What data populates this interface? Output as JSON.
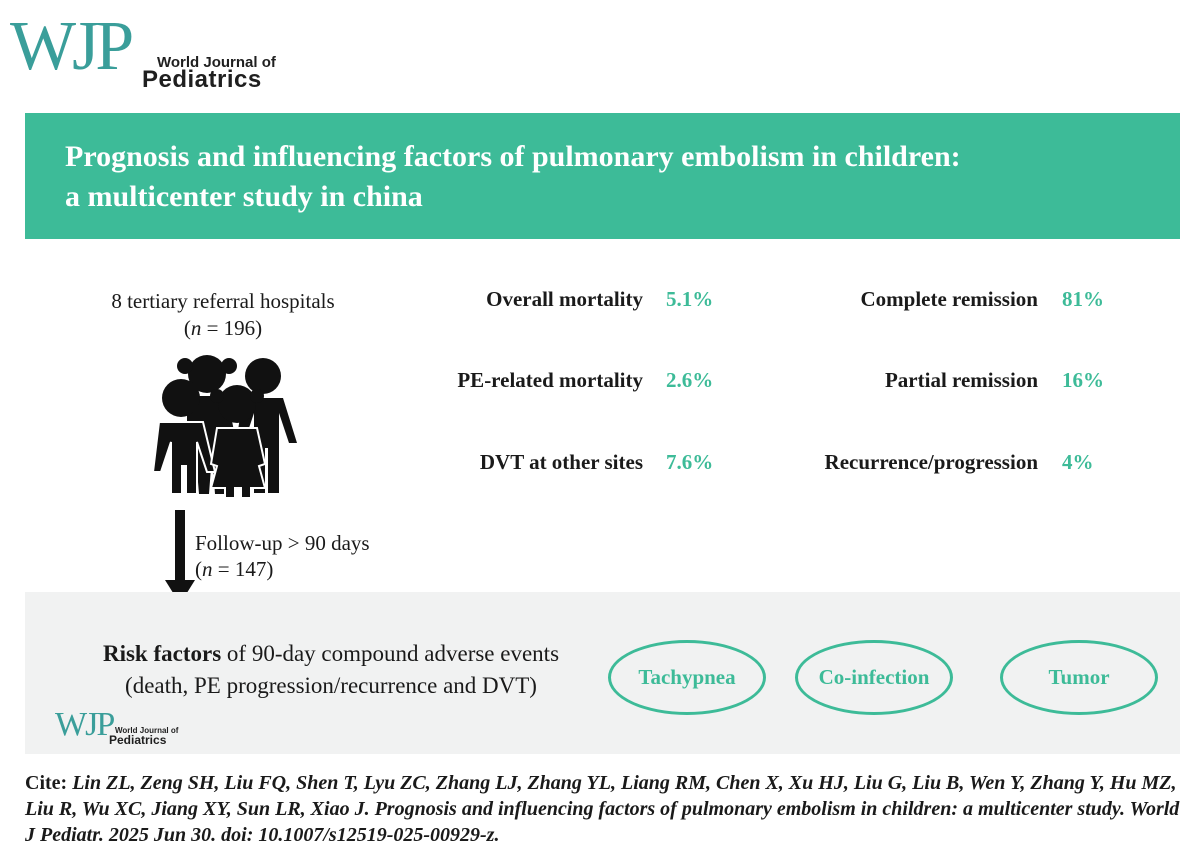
{
  "logo": {
    "mark": "WJP",
    "line1": "World Journal of",
    "line2": "Pediatrics"
  },
  "title": {
    "line1": "Prognosis and influencing factors of pulmonary embolism in children:",
    "line2": "a multicenter study in china"
  },
  "cohort": {
    "hospitals": "8 tertiary referral hospitals",
    "n_symbol": "n",
    "n_value": " = 196)",
    "paren_open": "(",
    "icon": "children-group-icon"
  },
  "followup": {
    "label": "Follow-up > 90 days",
    "paren_open": "(",
    "n_symbol": "n",
    "n_value": " = 147)"
  },
  "outcomes_left": [
    {
      "label": "Overall mortality",
      "value": "5.1%"
    },
    {
      "label": "PE-related mortality",
      "value": "2.6%"
    },
    {
      "label": "DVT at other sites",
      "value": "7.6%"
    }
  ],
  "outcomes_right": [
    {
      "label": "Complete remission",
      "value": "81%"
    },
    {
      "label": "Partial remission",
      "value": "16%"
    },
    {
      "label": "Recurrence/progression",
      "value": "4%"
    }
  ],
  "risk": {
    "bold": "Risk factors",
    "rest": " of 90-day compound adverse events",
    "line2": "(death, PE progression/recurrence and DVT)",
    "factors": [
      "Tachypnea",
      "Co-infection",
      "Tumor"
    ]
  },
  "citation": {
    "prefix": "Cite:",
    "text": " Lin ZL, Zeng SH, Liu FQ, Shen T, Lyu ZC, Zhang LJ, Zhang YL, Liang RM, Chen X, Xu HJ, Liu G, Liu B, Wen Y, Zhang Y, Hu MZ, Liu R, Wu XC, Jiang XY, Sun LR, Xiao J. Prognosis and influencing factors of pulmonary embolism in children: a multicenter study. World J Pediatr. 2025 Jun 30. doi: 10.1007/s12519-025-00929-z."
  },
  "colors": {
    "accent": "#3dbb98",
    "logo": "#3a9e9a",
    "panel": "#f1f2f2"
  }
}
